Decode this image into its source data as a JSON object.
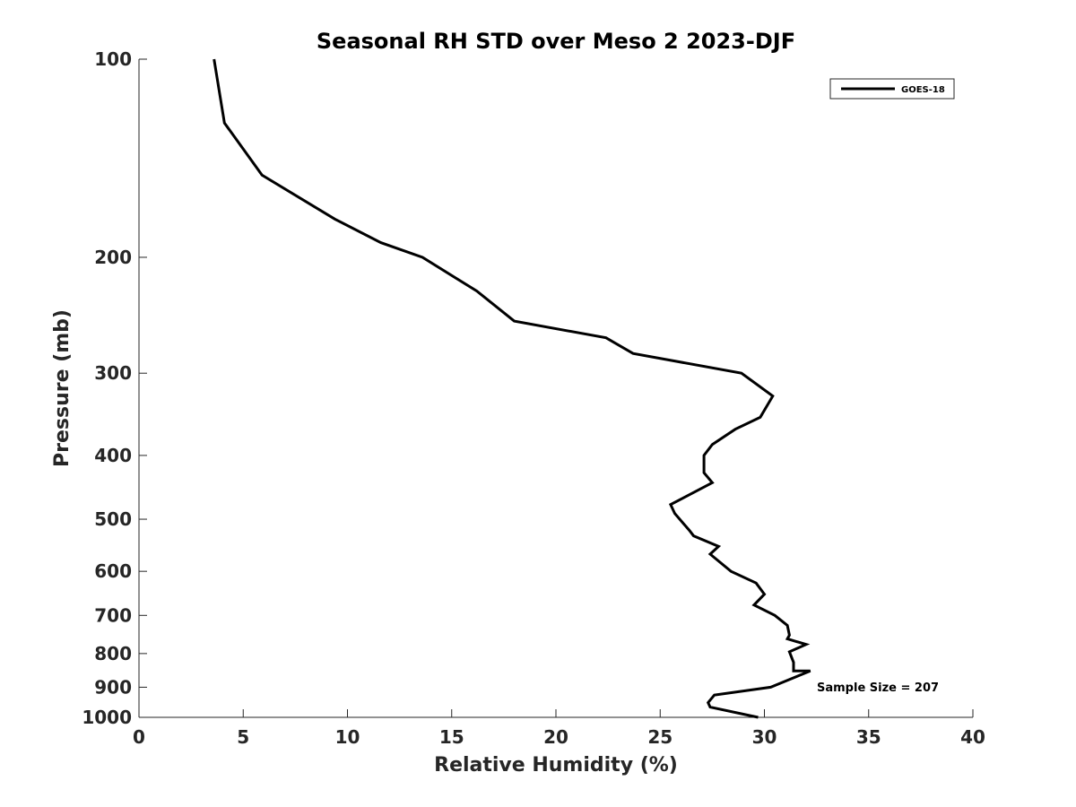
{
  "chart_data": {
    "type": "line",
    "title": "Seasonal RH STD over Meso 2  2023-DJF",
    "xlabel": "Relative Humidity (%)",
    "ylabel": "Pressure (mb)",
    "xlim": [
      0,
      40
    ],
    "ylim": [
      100,
      1000
    ],
    "y_scale": "log",
    "y_reversed": true,
    "grid": false,
    "legend_position": "top-right",
    "xticks": [
      0,
      5,
      10,
      15,
      20,
      25,
      30,
      35,
      40
    ],
    "yticks": [
      100,
      200,
      300,
      400,
      500,
      600,
      700,
      800,
      900,
      1000
    ],
    "xtick_labels": [
      "0",
      "5",
      "10",
      "15",
      "20",
      "25",
      "30",
      "35",
      "40"
    ],
    "ytick_labels": [
      "100",
      "200",
      "300",
      "400",
      "500",
      "600",
      "700",
      "800",
      "900",
      "1000"
    ],
    "annotation": "Sample Size = 207",
    "series": [
      {
        "name": "GOES-18",
        "color": "#000000",
        "x": [
          3.6,
          4.1,
          5.9,
          9.4,
          11.6,
          13.6,
          16.2,
          18.0,
          22.4,
          23.7,
          28.9,
          30.4,
          29.8,
          28.6,
          27.5,
          27.1,
          27.1,
          27.5,
          25.5,
          25.7,
          26.4,
          26.6,
          27.8,
          27.4,
          28.4,
          29.6,
          30.0,
          29.5,
          30.5,
          31.1,
          31.2,
          31.1,
          32.0,
          31.2,
          31.4,
          31.4,
          32.2,
          30.3,
          27.6,
          27.3,
          27.4,
          29.7
        ],
        "y": [
          100,
          125,
          150,
          175,
          190,
          200,
          225,
          250,
          265,
          280,
          300,
          325,
          350,
          365,
          385,
          400,
          425,
          440,
          475,
          490,
          520,
          530,
          550,
          565,
          600,
          625,
          650,
          675,
          700,
          725,
          750,
          760,
          775,
          795,
          825,
          850,
          850,
          900,
          925,
          950,
          965,
          1000
        ]
      }
    ]
  }
}
